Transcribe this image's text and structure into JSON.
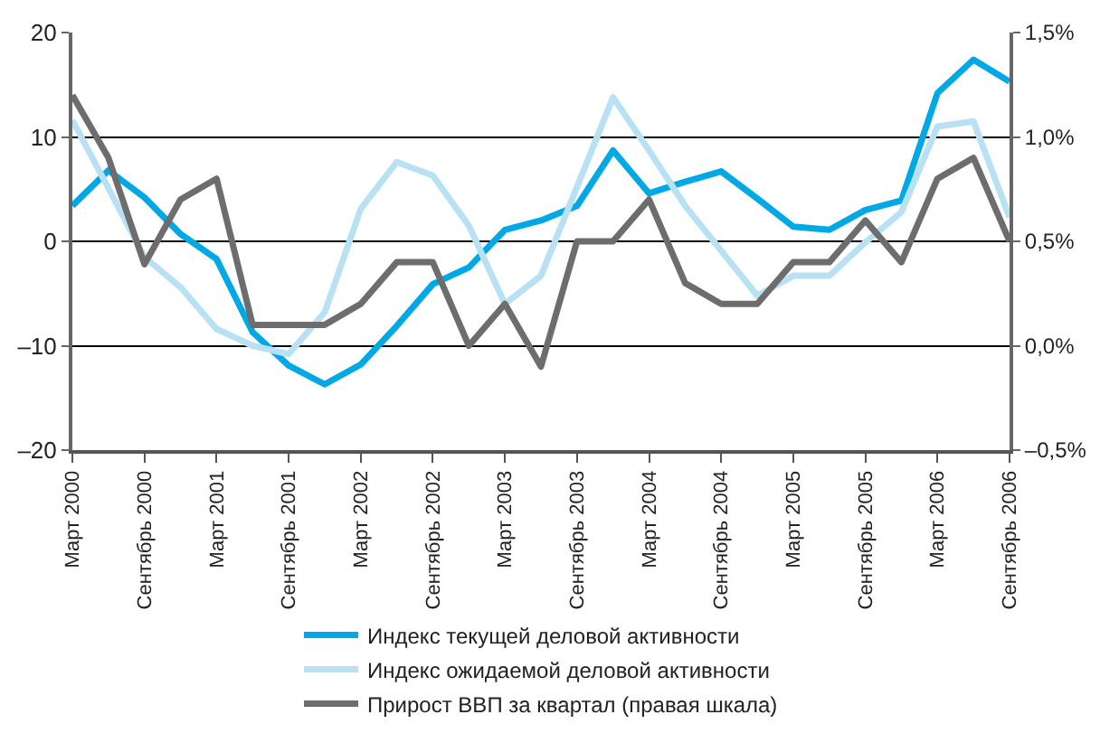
{
  "chart_data": {
    "type": "line",
    "categories": [
      "Март 2000",
      null,
      "Сентябрь 2000",
      null,
      "Март 2001",
      null,
      "Сентябрь 2001",
      null,
      "Март 2002",
      null,
      "Сентябрь 2002",
      null,
      "Март 2003",
      null,
      "Сентябрь 2003",
      null,
      "Март 2004",
      null,
      "Сентябрь 2004",
      null,
      "Март 2005",
      null,
      "Сентябрь 2005",
      null,
      "Март 2006",
      null,
      "Сентябрь 2006"
    ],
    "series": [
      {
        "name": "Индекс текущей деловой активности",
        "color": "#00a8e6",
        "values": [
          3.4,
          6.8,
          4.2,
          0.7,
          -1.7,
          -8.7,
          -11.9,
          -13.7,
          -11.8,
          -8.1,
          -4.1,
          -2.5,
          1.1,
          2.0,
          3.4,
          8.7,
          4.6,
          5.7,
          6.7,
          4.1,
          1.4,
          1.1,
          3.0,
          3.9,
          14.2,
          17.4,
          15.3
        ]
      },
      {
        "name": "Индекс ожидаемой деловой активности",
        "color": "#b8e2f4",
        "values": [
          11.6,
          5.1,
          -1.5,
          -4.4,
          -8.4,
          -10.0,
          -10.8,
          -6.8,
          3.1,
          7.6,
          6.3,
          1.5,
          -6.0,
          -3.3,
          5.2,
          13.8,
          8.7,
          3.4,
          -0.9,
          -5.2,
          -3.3,
          -3.3,
          -0.1,
          2.8,
          11.0,
          11.5,
          2.3
        ]
      },
      {
        "name": "Прирост ВВП за квартал (правая шкала)",
        "color": "#6d6d6d",
        "axis": "y2",
        "values": [
          1.2,
          0.9,
          0.39,
          0.7,
          0.8,
          0.1,
          0.1,
          0.1,
          0.2,
          0.4,
          0.4,
          0.0,
          0.2,
          -0.1,
          0.5,
          0.5,
          0.7,
          0.3,
          0.2,
          0.2,
          0.4,
          0.4,
          0.6,
          0.4,
          0.8,
          0.9,
          0.5
        ]
      }
    ],
    "ylim": [
      -20,
      20
    ],
    "yticks": [
      {
        "value": -20,
        "label": "–20"
      },
      {
        "value": -10,
        "label": "–10"
      },
      0,
      10,
      20
    ],
    "y2lim": [
      -0.5,
      1.5
    ],
    "y2ticks": [
      {
        "value": -0.5,
        "label": "–0,5%"
      },
      {
        "value": 0,
        "label": "0,0%"
      },
      {
        "value": 0.5,
        "label": "0,5%"
      },
      {
        "value": 1,
        "label": "1,0%"
      },
      {
        "value": 1.5,
        "label": "1,5%"
      }
    ],
    "grid": "y",
    "legend": "bottom",
    "line_style": "solid"
  }
}
